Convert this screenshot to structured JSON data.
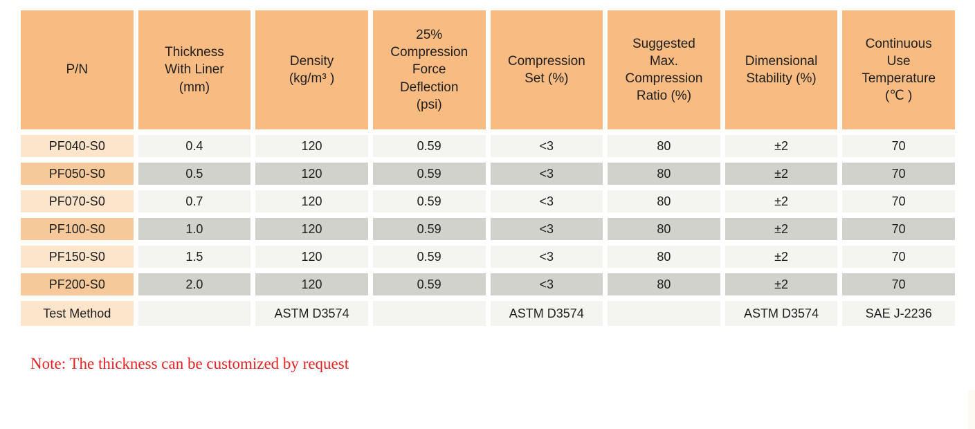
{
  "colors": {
    "header_bg": "#F8BB82",
    "pn_cell_light": "#FCE5CB",
    "pn_cell_dark": "#F6C99B",
    "data_cell_light": "#F4F4F0",
    "data_cell_dark": "#D2D2CC",
    "note_text": "#E32222",
    "table_text": "#1E1E1E"
  },
  "table": {
    "columns": [
      {
        "label": "P/N"
      },
      {
        "label": "Thickness\nWith Liner\n(mm)"
      },
      {
        "label": "Density\n(kg/m³ )"
      },
      {
        "label": "25%\nCompression\nForce\nDeflection\n(psi)"
      },
      {
        "label": "Compression\nSet (%)"
      },
      {
        "label": "Suggested\nMax.\nCompression\nRatio (%)"
      },
      {
        "label": "Dimensional\nStability (%)"
      },
      {
        "label": "Continuous\nUse\nTemperature\n(℃ )"
      }
    ],
    "rows": [
      {
        "pn": "PF040-S0",
        "values": [
          "0.4",
          "120",
          "0.59",
          "<3",
          "80",
          "±2",
          "70"
        ]
      },
      {
        "pn": "PF050-S0",
        "values": [
          "0.5",
          "120",
          "0.59",
          "<3",
          "80",
          "±2",
          "70"
        ]
      },
      {
        "pn": "PF070-S0",
        "values": [
          "0.7",
          "120",
          "0.59",
          "<3",
          "80",
          "±2",
          "70"
        ]
      },
      {
        "pn": "PF100-S0",
        "values": [
          "1.0",
          "120",
          "0.59",
          "<3",
          "80",
          "±2",
          "70"
        ]
      },
      {
        "pn": "PF150-S0",
        "values": [
          "1.5",
          "120",
          "0.59",
          "<3",
          "80",
          "±2",
          "70"
        ]
      },
      {
        "pn": "PF200-S0",
        "values": [
          "2.0",
          "120",
          "0.59",
          "<3",
          "80",
          "±2",
          "70"
        ]
      }
    ],
    "test_method": {
      "label": "Test Method",
      "values": [
        "",
        "ASTM D3574",
        "",
        "ASTM D3574",
        "",
        "ASTM D3574",
        "SAE J-2236"
      ]
    }
  },
  "note": {
    "text": "Note: The thickness can be customized by request"
  }
}
